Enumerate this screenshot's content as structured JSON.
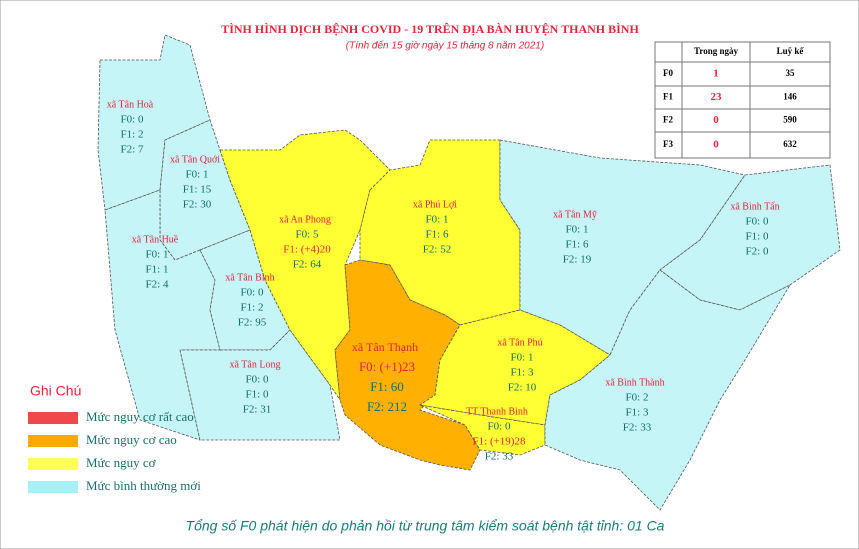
{
  "title": "TÌNH HÌNH DỊCH BỆNH COVID - 19 TRÊN ĐỊA BÀN HUYỆN THANH BÌNH",
  "subtitle": "(Tính đến 15 giờ ngày 15 tháng 8 năm 2021)",
  "table": {
    "header": [
      "Trong ngày",
      "Luỹ kế"
    ],
    "rows": [
      [
        "F0",
        1,
        35
      ],
      [
        "F1",
        23,
        146
      ],
      [
        "F2",
        0,
        590
      ],
      [
        "F3",
        0,
        632
      ]
    ]
  },
  "regions": [
    {
      "name": "xã Tân Hoà",
      "lines": [
        "F0: 0",
        "F1: 2",
        "F2: 7"
      ]
    },
    {
      "name": "xã Tân Quới",
      "lines": [
        "F0: 1",
        "F1: 15",
        "F2: 30"
      ]
    },
    {
      "name": "xã Tân Huề",
      "lines": [
        "F0: 1",
        "F1: 1",
        "F2: 4"
      ]
    },
    {
      "name": "xã An Phong",
      "lines": [
        "F0: 5",
        "F1: (+4)20",
        "F2: 64"
      ]
    },
    {
      "name": "xã Tân Bình",
      "lines": [
        "F0: 0",
        "F1: 2",
        "F2: 95"
      ]
    },
    {
      "name": "xã Tân Long",
      "lines": [
        "F0: 0",
        "F1: 0",
        "F2: 31"
      ]
    },
    {
      "name": "xã Phú Lợi",
      "lines": [
        "F0: 1",
        "F1: 6",
        "F2: 52"
      ]
    },
    {
      "name": "xã Tân Mỹ",
      "lines": [
        "F0: 1",
        "F1: 6",
        "F2: 19"
      ]
    },
    {
      "name": "xã Bình Tấn",
      "lines": [
        "F0: 0",
        "F1: 0",
        "F2: 0"
      ]
    },
    {
      "name": "xã Tân Thạnh",
      "lines": [
        "F0: (+1)23",
        "F1: 60",
        "F2: 212"
      ]
    },
    {
      "name": "xã Tân Phú",
      "lines": [
        "F0: 1",
        "F1: 3",
        "F2: 10"
      ]
    },
    {
      "name": "xã Bình Thành",
      "lines": [
        "F0: 2",
        "F1: 3",
        "F2: 33"
      ]
    },
    {
      "name": "TT Thanh Bình",
      "lines": [
        "F0: 0",
        "F1: (+19)28",
        "F2: 33"
      ]
    }
  ],
  "legend": {
    "title": "Ghi Chú",
    "items": [
      "Mức  nguy cơ rất cao",
      "Mức  nguy cơ cao",
      "Mức  nguy cơ",
      "Mức  bình thường mới"
    ]
  },
  "footer": "Tổng số F0 phát hiện do phản hồi từ trung tâm kiểm soát bệnh tật tỉnh: 01 Ca"
}
